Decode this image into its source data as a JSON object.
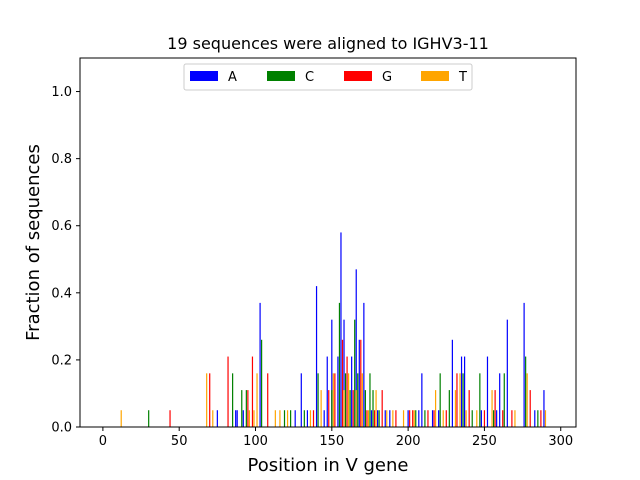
{
  "chart_data": {
    "type": "bar",
    "title": "19 sequences were aligned to IGHV3-11",
    "xlabel": "Position in V gene",
    "ylabel": "Fraction of sequences",
    "xlim": [
      -15,
      310
    ],
    "ylim": [
      0,
      1.1
    ],
    "xticks": [
      0,
      50,
      100,
      150,
      200,
      250,
      300
    ],
    "yticks": [
      0.0,
      0.2,
      0.4,
      0.6,
      0.8,
      1.0
    ],
    "xtick_labels": [
      "0",
      "50",
      "100",
      "150",
      "200",
      "250",
      "300"
    ],
    "ytick_labels": [
      "0.0",
      "0.2",
      "0.4",
      "0.6",
      "0.8",
      "1.0"
    ],
    "grid": false,
    "legend_position": "top-center",
    "series": [
      {
        "name": "A",
        "color": "#0000ff",
        "points": [
          [
            75,
            0.05
          ],
          [
            87,
            0.05
          ],
          [
            88,
            0.05
          ],
          [
            92,
            0.05
          ],
          [
            103,
            0.37
          ],
          [
            126,
            0.05
          ],
          [
            130,
            0.16
          ],
          [
            134,
            0.05
          ],
          [
            140,
            0.42
          ],
          [
            145,
            0.05
          ],
          [
            147,
            0.21
          ],
          [
            150,
            0.32
          ],
          [
            154,
            0.21
          ],
          [
            156,
            0.58
          ],
          [
            158,
            0.32
          ],
          [
            163,
            0.21
          ],
          [
            166,
            0.47
          ],
          [
            168,
            0.26
          ],
          [
            171,
            0.37
          ],
          [
            176,
            0.05
          ],
          [
            180,
            0.05
          ],
          [
            185,
            0.05
          ],
          [
            188,
            0.05
          ],
          [
            200,
            0.05
          ],
          [
            207,
            0.05
          ],
          [
            209,
            0.16
          ],
          [
            216,
            0.05
          ],
          [
            220,
            0.05
          ],
          [
            229,
            0.26
          ],
          [
            235,
            0.21
          ],
          [
            237,
            0.21
          ],
          [
            248,
            0.05
          ],
          [
            252,
            0.21
          ],
          [
            258,
            0.05
          ],
          [
            260,
            0.16
          ],
          [
            265,
            0.32
          ],
          [
            276,
            0.37
          ],
          [
            283,
            0.05
          ],
          [
            289,
            0.11
          ]
        ]
      },
      {
        "name": "C",
        "color": "#008000",
        "points": [
          [
            30,
            0.05
          ],
          [
            85,
            0.16
          ],
          [
            91,
            0.11
          ],
          [
            94,
            0.11
          ],
          [
            104,
            0.26
          ],
          [
            119,
            0.05
          ],
          [
            123,
            0.05
          ],
          [
            132,
            0.05
          ],
          [
            141,
            0.16
          ],
          [
            150,
            0.11
          ],
          [
            155,
            0.37
          ],
          [
            159,
            0.16
          ],
          [
            162,
            0.11
          ],
          [
            165,
            0.32
          ],
          [
            167,
            0.16
          ],
          [
            172,
            0.11
          ],
          [
            175,
            0.16
          ],
          [
            177,
            0.11
          ],
          [
            181,
            0.05
          ],
          [
            205,
            0.05
          ],
          [
            211,
            0.05
          ],
          [
            221,
            0.16
          ],
          [
            227,
            0.11
          ],
          [
            236,
            0.16
          ],
          [
            242,
            0.05
          ],
          [
            247,
            0.16
          ],
          [
            256,
            0.05
          ],
          [
            263,
            0.16
          ],
          [
            277,
            0.21
          ],
          [
            285,
            0.05
          ]
        ]
      },
      {
        "name": "G",
        "color": "#ff0000",
        "points": [
          [
            44,
            0.05
          ],
          [
            70,
            0.16
          ],
          [
            82,
            0.21
          ],
          [
            95,
            0.11
          ],
          [
            98,
            0.21
          ],
          [
            108,
            0.16
          ],
          [
            138,
            0.05
          ],
          [
            148,
            0.11
          ],
          [
            152,
            0.16
          ],
          [
            157,
            0.26
          ],
          [
            160,
            0.21
          ],
          [
            164,
            0.11
          ],
          [
            169,
            0.26
          ],
          [
            173,
            0.05
          ],
          [
            178,
            0.05
          ],
          [
            183,
            0.11
          ],
          [
            192,
            0.05
          ],
          [
            201,
            0.05
          ],
          [
            203,
            0.05
          ],
          [
            213,
            0.05
          ],
          [
            217,
            0.05
          ],
          [
            225,
            0.05
          ],
          [
            232,
            0.16
          ],
          [
            240,
            0.11
          ],
          [
            250,
            0.05
          ],
          [
            257,
            0.11
          ],
          [
            262,
            0.05
          ],
          [
            268,
            0.05
          ],
          [
            280,
            0.11
          ],
          [
            287,
            0.05
          ]
        ]
      },
      {
        "name": "T",
        "color": "#ffa500",
        "points": [
          [
            12,
            0.05
          ],
          [
            68,
            0.16
          ],
          [
            72,
            0.05
          ],
          [
            96,
            0.05
          ],
          [
            99,
            0.05
          ],
          [
            101,
            0.16
          ],
          [
            113,
            0.05
          ],
          [
            116,
            0.05
          ],
          [
            121,
            0.05
          ],
          [
            136,
            0.05
          ],
          [
            143,
            0.11
          ],
          [
            151,
            0.16
          ],
          [
            158,
            0.11
          ],
          [
            161,
            0.16
          ],
          [
            166,
            0.11
          ],
          [
            170,
            0.16
          ],
          [
            174,
            0.05
          ],
          [
            179,
            0.11
          ],
          [
            186,
            0.05
          ],
          [
            190,
            0.05
          ],
          [
            197,
            0.05
          ],
          [
            204,
            0.05
          ],
          [
            218,
            0.11
          ],
          [
            223,
            0.05
          ],
          [
            231,
            0.11
          ],
          [
            234,
            0.16
          ],
          [
            238,
            0.05
          ],
          [
            245,
            0.05
          ],
          [
            255,
            0.11
          ],
          [
            270,
            0.05
          ],
          [
            278,
            0.16
          ],
          [
            290,
            0.05
          ]
        ]
      }
    ]
  }
}
